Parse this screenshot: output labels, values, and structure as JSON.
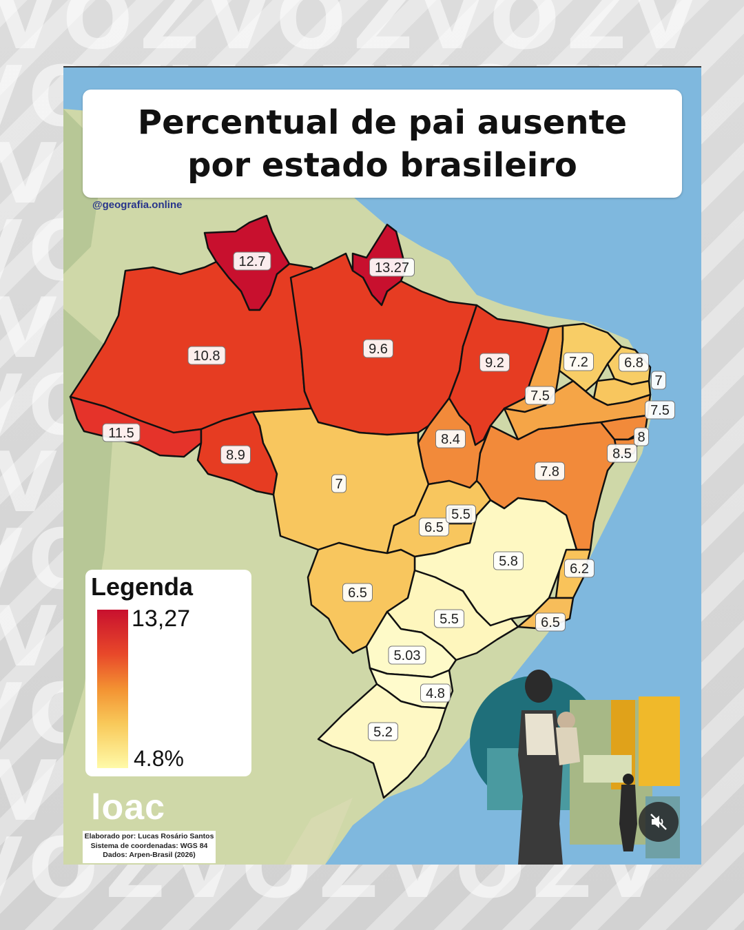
{
  "title": "Percentual de pai ausente por estado brasileiro",
  "handle": "@geografia.online",
  "watermark": [
    "VOZVOZVOZV",
    "VOZVOZVOZV",
    "VOZVOZVOZV",
    "VOZVOZVOZV",
    "VOZVOZVOZV",
    "VOZVOZVOZV",
    "VOZVOZVOZV",
    "VOZVOZVOZV",
    "VOZVOZVOZV",
    "VOZVOZVOZV",
    "VOZVOZVOZV",
    "VOZVOZVOZV"
  ],
  "legend": {
    "title": "Legenda",
    "max_label": "13,27",
    "min_label": "4.8%",
    "color_high": "#c8102e",
    "color_low": "#fffaa8"
  },
  "logo": {
    "text": "loac"
  },
  "credits": {
    "line1": "Elaborado por: Lucas Rosário Santos",
    "line2": "Sistema de coordenadas: WGS 84",
    "line3": "Dados: Arpen-Brasil (2026)"
  },
  "mute_icon": "muted-speaker-icon",
  "states": [
    {
      "value": "12.7",
      "color": "#c8102e"
    },
    {
      "value": "13.27",
      "color": "#c8102e"
    },
    {
      "value": "10.8",
      "color": "#e63c22"
    },
    {
      "value": "9.6",
      "color": "#e63c22"
    },
    {
      "value": "9.2",
      "color": "#e63c22"
    },
    {
      "value": "11.5",
      "color": "#e5332a"
    },
    {
      "value": "8.9",
      "color": "#e63c22"
    },
    {
      "value": "8.4",
      "color": "#f28a3a"
    },
    {
      "value": "7.2",
      "color": "#f8cd66"
    },
    {
      "value": "6.8",
      "color": "#f8cd66"
    },
    {
      "value": "7",
      "color": "#f8c65e"
    },
    {
      "value": "7.5",
      "color": "#f5a547"
    },
    {
      "value": "7.5",
      "color": "#f5a547"
    },
    {
      "value": "8",
      "color": "#f28a3a"
    },
    {
      "value": "8.5",
      "color": "#f28a3a"
    },
    {
      "value": "7.8",
      "color": "#f28a3a"
    },
    {
      "value": "7",
      "color": "#f8c65e"
    },
    {
      "value": "6.5",
      "color": "#f8c65e"
    },
    {
      "value": "5.5",
      "color": "#fde38a"
    },
    {
      "value": "5.8",
      "color": "#fef8c2"
    },
    {
      "value": "6.2",
      "color": "#f9c35a"
    },
    {
      "value": "6.5",
      "color": "#f7bd5a"
    },
    {
      "value": "5.5",
      "color": "#fef6bd"
    },
    {
      "value": "6.5",
      "color": "#f8c65e"
    },
    {
      "value": "5.03",
      "color": "#fefac8"
    },
    {
      "value": "4.8",
      "color": "#fffbcc"
    },
    {
      "value": "5.2",
      "color": "#fef8c4"
    }
  ]
}
